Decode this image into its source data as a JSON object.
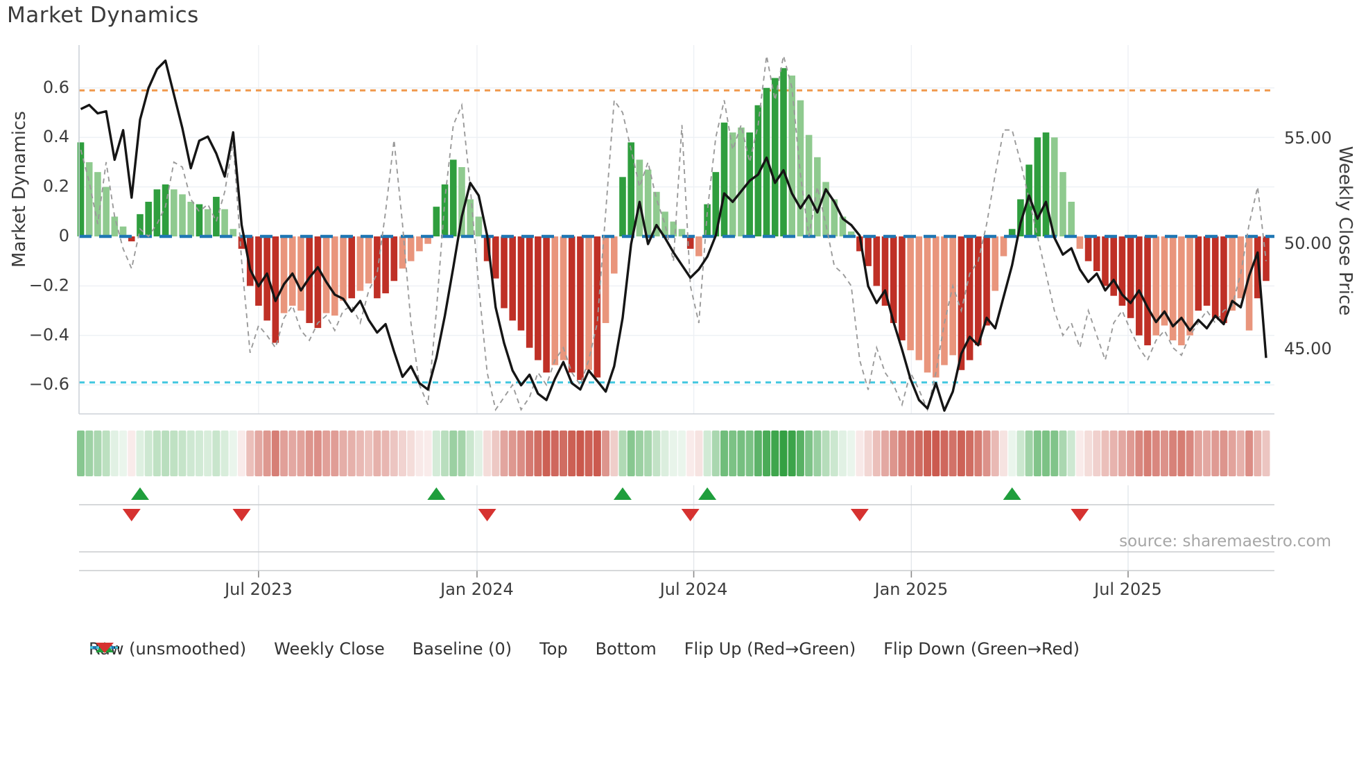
{
  "page": {
    "title": "Market Dynamics",
    "source": "source: sharemaestro.com"
  },
  "axes": {
    "left": {
      "title": "Market Dynamics",
      "ticks": [
        {
          "label": "0.6",
          "v": 0.6
        },
        {
          "label": "0.4",
          "v": 0.4
        },
        {
          "label": "0.2",
          "v": 0.2
        },
        {
          "label": "0",
          "v": 0.0
        },
        {
          "label": "−0.2",
          "v": -0.2
        },
        {
          "label": "−0.4",
          "v": -0.4
        },
        {
          "label": "−0.6",
          "v": -0.6
        }
      ]
    },
    "right": {
      "title": "Weekly Close Price",
      "ticks": [
        {
          "label": "55.00",
          "p": 55.0
        },
        {
          "label": "50.00",
          "p": 50.0
        },
        {
          "label": "45.00",
          "p": 45.0
        }
      ]
    },
    "x": {
      "ticks": [
        {
          "label": "Jul 2023",
          "week": 21.0
        },
        {
          "label": "Jan 2024",
          "week": 46.8
        },
        {
          "label": "Jul 2024",
          "week": 72.4
        },
        {
          "label": "Jan 2025",
          "week": 98.1
        },
        {
          "label": "Jul 2025",
          "week": 123.7
        }
      ]
    }
  },
  "colors": {
    "bar_dark_green": "#2f9e3e",
    "bar_light_green": "#8fca8f",
    "bar_dark_red": "#bf3026",
    "bar_light_red": "#e9957c",
    "close_line": "#151515",
    "raw_line": "#9a9a9a",
    "baseline": "#1f77b4",
    "top_line": "#f09a4f",
    "bottom_line": "#45c8e0",
    "grid": "#edf0f4",
    "spine": "#cdd2d8",
    "marker_row_line": "#c9cbcd",
    "flip_up": "#1f9e3c",
    "flip_down": "#d63230",
    "heat_green": "#2f9e3e",
    "heat_red": "#c0392b"
  },
  "legend": [
    {
      "label": "Raw (unsmoothed)",
      "type": "dash-gray"
    },
    {
      "label": "Weekly Close",
      "type": "solid-black"
    },
    {
      "label": "Baseline (0)",
      "type": "dash-blue"
    },
    {
      "label": "Top",
      "type": "dot-orange"
    },
    {
      "label": "Bottom",
      "type": "dot-cyan"
    },
    {
      "label": "Flip Up (Red→Green)",
      "type": "tri-up"
    },
    {
      "label": "Flip Down (Green→Red)",
      "type": "tri-down"
    }
  ],
  "chart_data": {
    "type": "combo",
    "description": "Weekly oscillator bars with smoothed value, raw dashed overlay, weekly close price line, threshold lines, heatmap strip and flip markers",
    "x_unit": "weeks starting early Feb 2023, one bar per week",
    "n_weeks": 141,
    "ylim_left": [
      -0.72,
      0.77
    ],
    "right_axis_labels": [
      45.0,
      50.0,
      55.0
    ],
    "reference_lines": {
      "baseline": 0.0,
      "top": 0.59,
      "bottom": -0.59
    },
    "bar_values": [
      0.38,
      0.3,
      0.26,
      0.2,
      0.08,
      0.04,
      -0.02,
      0.09,
      0.14,
      0.19,
      0.21,
      0.19,
      0.17,
      0.14,
      0.13,
      0.11,
      0.16,
      0.11,
      0.03,
      -0.05,
      -0.2,
      -0.28,
      -0.34,
      -0.43,
      -0.31,
      -0.28,
      -0.3,
      -0.35,
      -0.37,
      -0.31,
      -0.32,
      -0.26,
      -0.25,
      -0.22,
      -0.19,
      -0.25,
      -0.23,
      -0.18,
      -0.13,
      -0.1,
      -0.06,
      -0.03,
      0.12,
      0.21,
      0.31,
      0.28,
      0.15,
      0.08,
      -0.1,
      -0.17,
      -0.29,
      -0.34,
      -0.38,
      -0.45,
      -0.5,
      -0.55,
      -0.52,
      -0.5,
      -0.55,
      -0.58,
      -0.54,
      -0.57,
      -0.35,
      -0.15,
      0.24,
      0.38,
      0.31,
      0.27,
      0.18,
      0.1,
      0.06,
      0.03,
      -0.05,
      -0.08,
      0.13,
      0.26,
      0.46,
      0.42,
      0.44,
      0.42,
      0.53,
      0.6,
      0.64,
      0.68,
      0.65,
      0.55,
      0.41,
      0.32,
      0.22,
      0.15,
      0.08,
      0.02,
      -0.06,
      -0.12,
      -0.2,
      -0.28,
      -0.35,
      -0.42,
      -0.46,
      -0.5,
      -0.55,
      -0.57,
      -0.52,
      -0.48,
      -0.54,
      -0.5,
      -0.44,
      -0.36,
      -0.22,
      -0.08,
      0.03,
      0.15,
      0.29,
      0.4,
      0.42,
      0.4,
      0.26,
      0.14,
      -0.05,
      -0.1,
      -0.14,
      -0.2,
      -0.24,
      -0.28,
      -0.33,
      -0.4,
      -0.44,
      -0.4,
      -0.36,
      -0.42,
      -0.44,
      -0.4,
      -0.3,
      -0.28,
      -0.33,
      -0.35,
      -0.3,
      -0.25,
      -0.38,
      -0.25,
      -0.18
    ],
    "bar_shades": "DLLLLLDDDDDLLLDLDLLDDDDDLLLDDLLLDLLDDDLLLLDDDLLLDDDDDDDDLLDDLDLLDDLLLLLLDLDDDLLDDDDDLLLLLLLLDDDDDDLLLLLLDDDDLLDDDDDLLLLDDDDDDDDLLLLLDDDDLLLDD",
    "raw_values": [
      0.35,
      0.22,
      0.05,
      0.3,
      0.08,
      -0.05,
      -0.13,
      0.03,
      0.0,
      0.05,
      0.12,
      0.3,
      0.28,
      0.15,
      0.1,
      0.13,
      0.06,
      0.18,
      0.38,
      -0.1,
      -0.47,
      -0.36,
      -0.4,
      -0.45,
      -0.33,
      -0.28,
      -0.38,
      -0.42,
      -0.35,
      -0.32,
      -0.38,
      -0.3,
      -0.28,
      -0.35,
      -0.22,
      -0.15,
      0.1,
      0.39,
      0.05,
      -0.35,
      -0.6,
      -0.68,
      -0.3,
      0.15,
      0.45,
      0.53,
      0.2,
      -0.2,
      -0.55,
      -0.7,
      -0.65,
      -0.6,
      -0.7,
      -0.65,
      -0.55,
      -0.6,
      -0.5,
      -0.45,
      -0.55,
      -0.6,
      -0.5,
      -0.35,
      0.1,
      0.55,
      0.5,
      0.35,
      0.2,
      0.3,
      0.15,
      0.05,
      -0.1,
      0.45,
      -0.2,
      -0.35,
      0.1,
      0.4,
      0.55,
      0.35,
      0.45,
      0.3,
      0.45,
      0.73,
      0.55,
      0.73,
      0.6,
      0.25,
      0.0,
      0.2,
      0.05,
      -0.12,
      -0.15,
      -0.2,
      -0.5,
      -0.62,
      -0.45,
      -0.55,
      -0.6,
      -0.68,
      -0.55,
      -0.62,
      -0.7,
      -0.55,
      -0.35,
      -0.2,
      -0.3,
      -0.15,
      -0.1,
      0.05,
      0.25,
      0.43,
      0.43,
      0.3,
      0.15,
      0.0,
      -0.15,
      -0.3,
      -0.4,
      -0.35,
      -0.45,
      -0.3,
      -0.4,
      -0.5,
      -0.35,
      -0.3,
      -0.38,
      -0.45,
      -0.5,
      -0.42,
      -0.38,
      -0.45,
      -0.48,
      -0.4,
      -0.35,
      -0.3,
      -0.35,
      -0.3,
      -0.28,
      -0.15,
      0.05,
      0.2,
      -0.1
    ],
    "close_values": [
      56.4,
      56.6,
      56.2,
      56.3,
      54.0,
      55.4,
      52.2,
      55.9,
      57.4,
      58.3,
      58.7,
      57.1,
      55.5,
      53.6,
      54.9,
      55.1,
      54.3,
      53.2,
      55.3,
      50.9,
      48.8,
      48.0,
      48.6,
      47.3,
      48.1,
      48.6,
      47.8,
      48.4,
      48.9,
      48.2,
      47.6,
      47.4,
      46.8,
      47.3,
      46.4,
      45.8,
      46.2,
      44.9,
      43.7,
      44.2,
      43.4,
      43.1,
      44.6,
      46.6,
      48.9,
      51.3,
      52.9,
      52.3,
      50.4,
      47.0,
      45.3,
      44.0,
      43.3,
      43.8,
      42.9,
      42.6,
      43.6,
      44.4,
      43.4,
      43.1,
      44.0,
      43.5,
      43.0,
      44.2,
      46.5,
      50.0,
      52.0,
      50.0,
      50.9,
      50.3,
      49.6,
      49.0,
      48.4,
      48.8,
      49.4,
      50.4,
      52.4,
      52.0,
      52.5,
      53.0,
      53.3,
      54.1,
      52.9,
      53.5,
      52.4,
      51.7,
      52.3,
      51.5,
      52.6,
      52.0,
      51.2,
      50.9,
      50.4,
      48.0,
      47.2,
      47.8,
      46.3,
      45.0,
      43.6,
      42.6,
      42.2,
      43.4,
      42.1,
      43.0,
      44.8,
      45.6,
      45.2,
      46.5,
      46.0,
      47.5,
      49.0,
      51.0,
      52.3,
      51.2,
      52.0,
      50.3,
      49.5,
      49.8,
      48.8,
      48.2,
      48.6,
      47.8,
      48.3,
      47.6,
      47.2,
      47.8,
      47.0,
      46.3,
      46.8,
      46.1,
      46.5,
      45.9,
      46.4,
      46.0,
      46.6,
      46.2,
      47.3,
      47.0,
      48.5,
      49.6,
      44.6
    ],
    "flip_up_weeks": [
      7,
      42,
      64,
      74,
      110
    ],
    "flip_down_weeks": [
      6,
      19,
      48,
      72,
      92,
      118
    ],
    "heatmap": "derived from bar_values sign and magnitude, green positive / red negative"
  }
}
